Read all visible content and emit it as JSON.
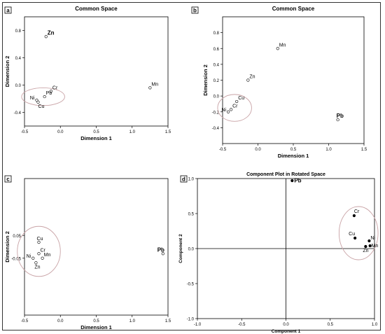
{
  "chart_data": [
    {
      "type": "scatter",
      "panel_label": "a",
      "title": "Common Space",
      "xlabel": "Dimension 1",
      "ylabel": "Dimension 2",
      "xlim": [
        -0.5,
        1.5
      ],
      "ylim": [
        -0.6,
        1.0
      ],
      "xticks": [
        "-0.5",
        "0.0",
        "0.5",
        "1.0",
        "1.5"
      ],
      "yticks": [
        "0.8",
        "0.4",
        "0.0",
        "-0.4"
      ],
      "points": [
        {
          "label": "Zn",
          "x": -0.2,
          "y": 0.71
        },
        {
          "label": "Mn",
          "x": 1.25,
          "y": -0.04
        },
        {
          "label": "Cr",
          "x": -0.13,
          "y": -0.09
        },
        {
          "label": "Pb",
          "x": -0.22,
          "y": -0.17
        },
        {
          "label": "Ni",
          "x": -0.33,
          "y": -0.22
        },
        {
          "label": "Cu",
          "x": -0.31,
          "y": -0.25
        }
      ],
      "grid": false
    },
    {
      "type": "scatter",
      "panel_label": "b",
      "title": "Common Space",
      "xlabel": "Dimension 1",
      "ylabel": "Dimension 2",
      "xlim": [
        -0.5,
        1.5
      ],
      "ylim": [
        -0.6,
        1.0
      ],
      "xticks": [
        "-0.5",
        "0.0",
        "0.5",
        "1.0",
        "1.5"
      ],
      "yticks": [
        "0.8",
        "0.6",
        "0.4",
        "0.2",
        "0.0",
        "-0.2",
        "-0.4"
      ],
      "points": [
        {
          "label": "Mn",
          "x": 0.28,
          "y": 0.6
        },
        {
          "label": "Zn",
          "x": -0.14,
          "y": 0.2
        },
        {
          "label": "Cu",
          "x": -0.3,
          "y": -0.07
        },
        {
          "label": "Cr",
          "x": -0.38,
          "y": -0.17
        },
        {
          "label": "Ni",
          "x": -0.42,
          "y": -0.2
        },
        {
          "label": "Pb",
          "x": 1.13,
          "y": -0.3
        }
      ],
      "grid": false
    },
    {
      "type": "scatter",
      "panel_label": "c",
      "title": "",
      "xlabel": "Dimension 1",
      "ylabel": "Dimension 2",
      "xlim": [
        -0.5,
        1.5
      ],
      "ylim": [
        -0.3,
        0.3
      ],
      "xticks": [
        "-0.5",
        "0.0",
        "0.5",
        "1.0",
        "1.5"
      ],
      "yticks": [
        "0.05",
        "-0.05"
      ],
      "points": [
        {
          "label": "Pb",
          "x": 1.43,
          "y": -0.03
        },
        {
          "label": "Cu",
          "x": -0.3,
          "y": 0.02
        },
        {
          "label": "Cr",
          "x": -0.3,
          "y": -0.03
        },
        {
          "label": "Ni",
          "x": -0.38,
          "y": -0.05
        },
        {
          "label": "Mn",
          "x": -0.25,
          "y": -0.05
        },
        {
          "label": "Zn",
          "x": -0.34,
          "y": -0.07
        }
      ],
      "grid": false
    },
    {
      "type": "scatter",
      "panel_label": "d",
      "title": "Component Plot in Rotated Space",
      "xlabel": "Component 1",
      "ylabel": "Component 2",
      "xlim": [
        -1.0,
        1.0
      ],
      "ylim": [
        -1.0,
        1.0
      ],
      "xticks": [
        "-1.0",
        "-0.5",
        "0.0",
        "0.5",
        "1.0"
      ],
      "yticks": [
        "1.0",
        "0.5",
        "0.0",
        "-0.5",
        "-1.0"
      ],
      "points": [
        {
          "label": "Pb",
          "x": 0.07,
          "y": 0.97
        },
        {
          "label": "Cr",
          "x": 0.77,
          "y": 0.47
        },
        {
          "label": "Cu",
          "x": 0.78,
          "y": 0.15
        },
        {
          "label": "Ni",
          "x": 0.94,
          "y": 0.11
        },
        {
          "label": "Mn",
          "x": 0.95,
          "y": 0.04
        },
        {
          "label": "Zn",
          "x": 0.9,
          "y": 0.03
        }
      ],
      "grid": false
    }
  ]
}
